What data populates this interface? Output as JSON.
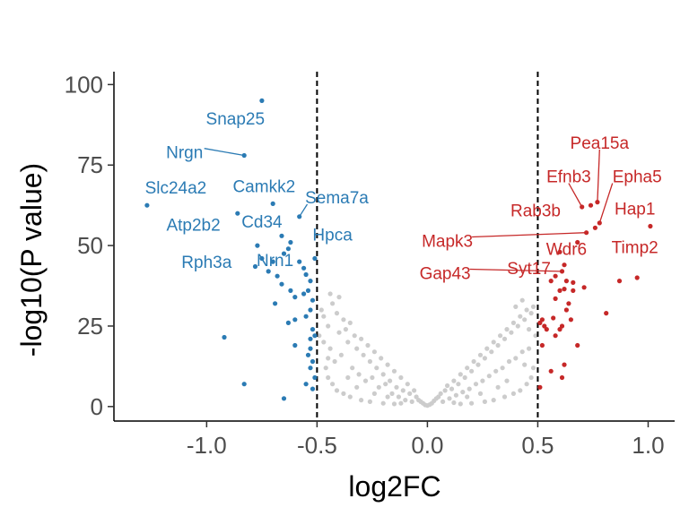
{
  "chart_data": {
    "type": "scatter",
    "title": "",
    "xlabel": "log2FC",
    "ylabel": "-log10(P value)",
    "xlim": [
      -1.42,
      1.12
    ],
    "ylim": [
      -4.5,
      104
    ],
    "x_ticks": [
      -1.0,
      -0.5,
      0.0,
      0.5,
      1.0
    ],
    "x_tick_labels": [
      "-1.0",
      "-0.5",
      "0.0",
      "0.5",
      "1.0"
    ],
    "y_ticks": [
      0,
      25,
      50,
      75,
      100
    ],
    "y_tick_labels": [
      "0",
      "25",
      "50",
      "75",
      "100"
    ],
    "thresholds": {
      "log2fc": [
        -0.5,
        0.5
      ],
      "line_style": "dashed"
    },
    "grid": false,
    "legend": "none",
    "colors": {
      "down": "#2b7bb4",
      "up": "#c62828",
      "ns": "#cccccc",
      "threshold": "#000000"
    },
    "series": [
      {
        "group": "down",
        "points": [
          {
            "x": -0.75,
            "y": 95
          },
          {
            "x": -0.83,
            "y": 78
          },
          {
            "x": -1.27,
            "y": 62.5
          },
          {
            "x": -0.7,
            "y": 63
          },
          {
            "x": -0.86,
            "y": 60
          },
          {
            "x": -0.58,
            "y": 59
          },
          {
            "x": -0.66,
            "y": 53
          },
          {
            "x": -0.62,
            "y": 51
          },
          {
            "x": -0.63,
            "y": 49
          },
          {
            "x": -0.65,
            "y": 47.5
          },
          {
            "x": -0.77,
            "y": 50
          },
          {
            "x": -0.75,
            "y": 46
          },
          {
            "x": -0.7,
            "y": 45
          },
          {
            "x": -0.78,
            "y": 43.5
          },
          {
            "x": -0.72,
            "y": 42
          },
          {
            "x": -0.68,
            "y": 40.5
          },
          {
            "x": -0.66,
            "y": 38
          },
          {
            "x": -0.62,
            "y": 36
          },
          {
            "x": -0.6,
            "y": 34
          },
          {
            "x": -0.58,
            "y": 45
          },
          {
            "x": -0.56,
            "y": 43
          },
          {
            "x": -0.55,
            "y": 41
          },
          {
            "x": -0.53,
            "y": 39
          },
          {
            "x": -0.54,
            "y": 36
          },
          {
            "x": -0.52,
            "y": 33
          },
          {
            "x": -0.56,
            "y": 35
          },
          {
            "x": -0.51,
            "y": 46
          },
          {
            "x": -0.53,
            "y": 30
          },
          {
            "x": -0.69,
            "y": 32
          },
          {
            "x": -0.6,
            "y": 27
          },
          {
            "x": -0.63,
            "y": 26
          },
          {
            "x": -0.55,
            "y": 28
          },
          {
            "x": -0.52,
            "y": 24
          },
          {
            "x": -0.53,
            "y": 21
          },
          {
            "x": -0.51,
            "y": 22
          },
          {
            "x": -0.92,
            "y": 21.5
          },
          {
            "x": -0.6,
            "y": 19
          },
          {
            "x": -0.53,
            "y": 18
          },
          {
            "x": -0.54,
            "y": 16
          },
          {
            "x": -0.52,
            "y": 14
          },
          {
            "x": -0.53,
            "y": 12
          },
          {
            "x": -0.51,
            "y": 9
          },
          {
            "x": -0.55,
            "y": 7
          },
          {
            "x": -0.52,
            "y": 5.5
          },
          {
            "x": -0.83,
            "y": 7
          },
          {
            "x": -0.65,
            "y": 2.5
          }
        ]
      },
      {
        "group": "up",
        "points": [
          {
            "x": 0.77,
            "y": 63.5
          },
          {
            "x": 0.74,
            "y": 62.5
          },
          {
            "x": 0.7,
            "y": 62
          },
          {
            "x": 1.01,
            "y": 56
          },
          {
            "x": 0.78,
            "y": 57
          },
          {
            "x": 0.76,
            "y": 55.5
          },
          {
            "x": 0.72,
            "y": 54
          },
          {
            "x": 0.68,
            "y": 51
          },
          {
            "x": 0.6,
            "y": 48
          },
          {
            "x": 0.62,
            "y": 44
          },
          {
            "x": 0.61,
            "y": 42
          },
          {
            "x": 0.58,
            "y": 40.5
          },
          {
            "x": 0.56,
            "y": 39
          },
          {
            "x": 0.63,
            "y": 39
          },
          {
            "x": 0.66,
            "y": 38.5
          },
          {
            "x": 0.62,
            "y": 36.5
          },
          {
            "x": 0.6,
            "y": 36
          },
          {
            "x": 0.66,
            "y": 36
          },
          {
            "x": 0.71,
            "y": 37
          },
          {
            "x": 0.58,
            "y": 33.5
          },
          {
            "x": 0.64,
            "y": 32
          },
          {
            "x": 0.63,
            "y": 30
          },
          {
            "x": 0.65,
            "y": 27
          },
          {
            "x": 0.57,
            "y": 27.5
          },
          {
            "x": 0.52,
            "y": 27
          },
          {
            "x": 0.51,
            "y": 26
          },
          {
            "x": 0.53,
            "y": 25
          },
          {
            "x": 0.54,
            "y": 24
          },
          {
            "x": 0.61,
            "y": 25
          },
          {
            "x": 0.6,
            "y": 24
          },
          {
            "x": 0.58,
            "y": 22
          },
          {
            "x": 0.68,
            "y": 19
          },
          {
            "x": 0.62,
            "y": 13
          },
          {
            "x": 0.56,
            "y": 11
          },
          {
            "x": 0.61,
            "y": 9
          },
          {
            "x": 0.87,
            "y": 39
          },
          {
            "x": 0.95,
            "y": 40
          },
          {
            "x": 0.81,
            "y": 29
          },
          {
            "x": 0.52,
            "y": 19
          },
          {
            "x": 0.51,
            "y": 6
          }
        ]
      },
      {
        "group": "ns",
        "points": [
          {
            "x": -0.48,
            "y": 30
          },
          {
            "x": -0.47,
            "y": 28
          },
          {
            "x": -0.45,
            "y": 25
          },
          {
            "x": -0.43,
            "y": 32
          },
          {
            "x": -0.41,
            "y": 29
          },
          {
            "x": -0.4,
            "y": 23
          },
          {
            "x": -0.38,
            "y": 27
          },
          {
            "x": -0.37,
            "y": 24
          },
          {
            "x": -0.36,
            "y": 20
          },
          {
            "x": -0.35,
            "y": 26
          },
          {
            "x": -0.33,
            "y": 22
          },
          {
            "x": -0.32,
            "y": 18
          },
          {
            "x": -0.3,
            "y": 21
          },
          {
            "x": -0.29,
            "y": 16
          },
          {
            "x": -0.27,
            "y": 19
          },
          {
            "x": -0.26,
            "y": 14
          },
          {
            "x": -0.24,
            "y": 17
          },
          {
            "x": -0.23,
            "y": 12
          },
          {
            "x": -0.21,
            "y": 15
          },
          {
            "x": -0.2,
            "y": 10
          },
          {
            "x": -0.18,
            "y": 13
          },
          {
            "x": -0.17,
            "y": 8
          },
          {
            "x": -0.15,
            "y": 11
          },
          {
            "x": -0.14,
            "y": 6
          },
          {
            "x": -0.12,
            "y": 9
          },
          {
            "x": -0.11,
            "y": 5
          },
          {
            "x": -0.09,
            "y": 7
          },
          {
            "x": -0.08,
            "y": 4
          },
          {
            "x": -0.06,
            "y": 5
          },
          {
            "x": -0.05,
            "y": 3
          },
          {
            "x": -0.04,
            "y": 2
          },
          {
            "x": -0.03,
            "y": 1.5
          },
          {
            "x": -0.02,
            "y": 1
          },
          {
            "x": -0.01,
            "y": 0.5
          },
          {
            "x": 0.0,
            "y": 0.3
          },
          {
            "x": 0.01,
            "y": 0.6
          },
          {
            "x": 0.02,
            "y": 1
          },
          {
            "x": 0.03,
            "y": 1.8
          },
          {
            "x": 0.04,
            "y": 2.5
          },
          {
            "x": 0.05,
            "y": 3
          },
          {
            "x": 0.06,
            "y": 4
          },
          {
            "x": 0.08,
            "y": 5
          },
          {
            "x": 0.09,
            "y": 6.5
          },
          {
            "x": 0.11,
            "y": 5.5
          },
          {
            "x": 0.12,
            "y": 8
          },
          {
            "x": 0.14,
            "y": 7
          },
          {
            "x": 0.15,
            "y": 10
          },
          {
            "x": 0.17,
            "y": 9
          },
          {
            "x": 0.18,
            "y": 12
          },
          {
            "x": 0.2,
            "y": 11
          },
          {
            "x": 0.21,
            "y": 14
          },
          {
            "x": 0.23,
            "y": 13
          },
          {
            "x": 0.24,
            "y": 16
          },
          {
            "x": 0.26,
            "y": 15
          },
          {
            "x": 0.27,
            "y": 18
          },
          {
            "x": 0.29,
            "y": 17
          },
          {
            "x": 0.3,
            "y": 20
          },
          {
            "x": 0.32,
            "y": 19
          },
          {
            "x": 0.33,
            "y": 22
          },
          {
            "x": 0.35,
            "y": 21
          },
          {
            "x": 0.36,
            "y": 24
          },
          {
            "x": 0.38,
            "y": 23
          },
          {
            "x": 0.39,
            "y": 26
          },
          {
            "x": 0.41,
            "y": 25
          },
          {
            "x": 0.42,
            "y": 28
          },
          {
            "x": 0.44,
            "y": 27
          },
          {
            "x": 0.45,
            "y": 30
          },
          {
            "x": 0.47,
            "y": 29
          },
          {
            "x": 0.48,
            "y": 31
          },
          {
            "x": -0.44,
            "y": 18
          },
          {
            "x": -0.42,
            "y": 14
          },
          {
            "x": -0.39,
            "y": 16
          },
          {
            "x": -0.34,
            "y": 12
          },
          {
            "x": -0.31,
            "y": 10
          },
          {
            "x": -0.28,
            "y": 8
          },
          {
            "x": -0.25,
            "y": 9
          },
          {
            "x": -0.22,
            "y": 6
          },
          {
            "x": -0.19,
            "y": 7
          },
          {
            "x": -0.16,
            "y": 4
          },
          {
            "x": -0.13,
            "y": 3
          },
          {
            "x": -0.1,
            "y": 2
          },
          {
            "x": -0.07,
            "y": 1.5
          },
          {
            "x": 0.07,
            "y": 1.5
          },
          {
            "x": 0.1,
            "y": 2.5
          },
          {
            "x": 0.13,
            "y": 3.5
          },
          {
            "x": 0.16,
            "y": 4.5
          },
          {
            "x": 0.19,
            "y": 5.5
          },
          {
            "x": 0.22,
            "y": 7
          },
          {
            "x": 0.25,
            "y": 8
          },
          {
            "x": 0.28,
            "y": 9.5
          },
          {
            "x": 0.31,
            "y": 11
          },
          {
            "x": 0.34,
            "y": 12
          },
          {
            "x": 0.37,
            "y": 14
          },
          {
            "x": 0.4,
            "y": 15
          },
          {
            "x": 0.43,
            "y": 17
          },
          {
            "x": 0.46,
            "y": 18
          },
          {
            "x": -0.46,
            "y": 12
          },
          {
            "x": -0.45,
            "y": 9
          },
          {
            "x": -0.43,
            "y": 7
          },
          {
            "x": -0.41,
            "y": 5
          },
          {
            "x": -0.38,
            "y": 4
          },
          {
            "x": -0.35,
            "y": 3
          },
          {
            "x": -0.3,
            "y": 2
          },
          {
            "x": -0.26,
            "y": 1.5
          },
          {
            "x": -0.2,
            "y": 1
          },
          {
            "x": -0.15,
            "y": 0.8
          },
          {
            "x": 0.15,
            "y": 0.8
          },
          {
            "x": 0.2,
            "y": 1
          },
          {
            "x": 0.26,
            "y": 1.5
          },
          {
            "x": 0.3,
            "y": 2
          },
          {
            "x": 0.35,
            "y": 3
          },
          {
            "x": 0.39,
            "y": 4
          },
          {
            "x": 0.42,
            "y": 5
          },
          {
            "x": 0.45,
            "y": 7
          },
          {
            "x": 0.47,
            "y": 9
          },
          {
            "x": 0.48,
            "y": 12
          },
          {
            "x": -0.49,
            "y": 22
          },
          {
            "x": -0.47,
            "y": 20
          },
          {
            "x": 0.49,
            "y": 22
          },
          {
            "x": 0.46,
            "y": 24
          },
          {
            "x": -0.4,
            "y": 34
          },
          {
            "x": -0.44,
            "y": 35
          },
          {
            "x": 0.4,
            "y": 31
          },
          {
            "x": 0.43,
            "y": 33
          },
          {
            "x": -0.36,
            "y": 9
          },
          {
            "x": -0.32,
            "y": 6
          },
          {
            "x": 0.32,
            "y": 6
          },
          {
            "x": 0.36,
            "y": 8
          },
          {
            "x": -0.24,
            "y": 4
          },
          {
            "x": -0.18,
            "y": 3
          },
          {
            "x": 0.18,
            "y": 3
          },
          {
            "x": 0.24,
            "y": 4
          },
          {
            "x": -0.45,
            "y": 15
          },
          {
            "x": 0.44,
            "y": 13
          },
          {
            "x": -0.12,
            "y": 1
          },
          {
            "x": 0.12,
            "y": 1.2
          }
        ]
      }
    ],
    "annotations": [
      {
        "text": "Snap25",
        "group": "down",
        "x": -0.87,
        "y": 89
      },
      {
        "text": "Nrgn",
        "group": "down",
        "x": -1.1,
        "y": 78.5,
        "pointer": [
          -0.83,
          78
        ]
      },
      {
        "text": "Slc24a2",
        "group": "down",
        "x": -1.14,
        "y": 67.5
      },
      {
        "text": "Camkk2",
        "group": "down",
        "x": -0.74,
        "y": 68
      },
      {
        "text": "Sema7a",
        "group": "down",
        "x": -0.41,
        "y": 64.5,
        "pointer": [
          -0.58,
          59
        ]
      },
      {
        "text": "Atp2b2",
        "group": "down",
        "x": -1.06,
        "y": 56
      },
      {
        "text": "Cd34",
        "group": "down",
        "x": -0.75,
        "y": 57
      },
      {
        "text": "Hpca",
        "group": "down",
        "x": -0.43,
        "y": 53
      },
      {
        "text": "Rph3a",
        "group": "down",
        "x": -1.0,
        "y": 44.5
      },
      {
        "text": "Nrn1",
        "group": "down",
        "x": -0.69,
        "y": 45
      },
      {
        "text": "Pea15a",
        "group": "up",
        "x": 0.78,
        "y": 81.5,
        "pointer": [
          0.77,
          63.5
        ]
      },
      {
        "text": "Efnb3",
        "group": "up",
        "x": 0.64,
        "y": 71,
        "pointer": [
          0.7,
          62
        ]
      },
      {
        "text": "Epha5",
        "group": "up",
        "x": 0.95,
        "y": 71,
        "pointer": [
          0.78,
          57
        ]
      },
      {
        "text": "Rab3b",
        "group": "up",
        "x": 0.49,
        "y": 60.5
      },
      {
        "text": "Hap1",
        "group": "up",
        "x": 0.94,
        "y": 61
      },
      {
        "text": "Mapk3",
        "group": "up",
        "x": 0.09,
        "y": 51,
        "pointer": [
          0.72,
          54
        ]
      },
      {
        "text": "Wdr6",
        "group": "up",
        "x": 0.63,
        "y": 48.5
      },
      {
        "text": "Timp2",
        "group": "up",
        "x": 0.94,
        "y": 49
      },
      {
        "text": "Syt17",
        "group": "up",
        "x": 0.46,
        "y": 42.5
      },
      {
        "text": "Gap43",
        "group": "up",
        "x": 0.08,
        "y": 41,
        "pointer": [
          0.6,
          42
        ]
      }
    ]
  }
}
